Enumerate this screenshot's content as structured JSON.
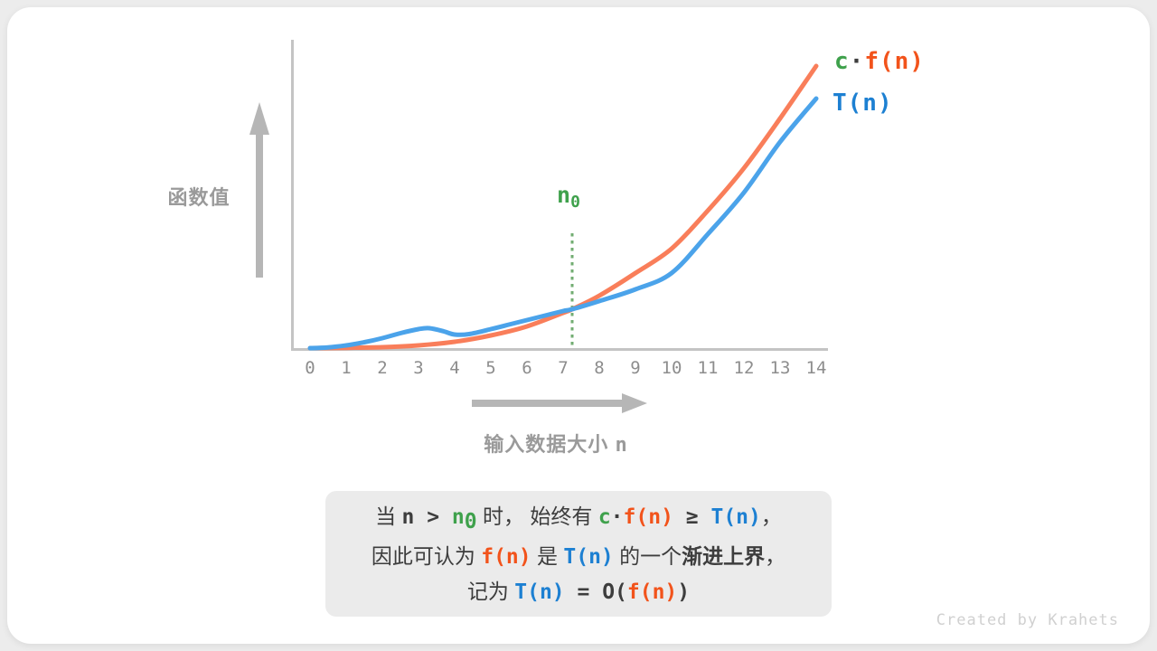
{
  "page": {
    "watermark": "Created by Krahets",
    "background_color": "#ececec",
    "card_color": "#ffffff"
  },
  "colors": {
    "green": "#3fa14c",
    "orange_text": "#f2531b",
    "blue_text": "#1d80d2",
    "orange_curve": "#f97e5a",
    "blue_curve": "#4ba3ea",
    "axis_gray": "#c4c4c4",
    "arrow_gray": "#b6b6b6",
    "tick_gray": "#8d8d8d",
    "threshold_green": "#72ad72",
    "caption_bg": "#ebebeb",
    "caption_text": "#3d3d3d"
  },
  "chart_data": {
    "type": "line",
    "title": "",
    "xlabel_cjk": "输入数据大小",
    "xlabel_var": "n",
    "ylabel": "函数值",
    "x_ticks": [
      "0",
      "1",
      "2",
      "3",
      "4",
      "5",
      "6",
      "7",
      "8",
      "9",
      "10",
      "11",
      "12",
      "13",
      "14"
    ],
    "xlim": [
      0,
      14.3
    ],
    "ylim": [
      0,
      330
    ],
    "grid": false,
    "legend_position": "top-right",
    "threshold": {
      "base": "n",
      "sub": "0",
      "x": 7.25,
      "line_style": "dotted-vertical"
    },
    "crossing_point": {
      "x": 7.25,
      "y": 43
    },
    "series": [
      {
        "name": "c·f(n)",
        "color": "#f97e5a",
        "points": [
          [
            0,
            0
          ],
          [
            1,
            0.3
          ],
          [
            2,
            1
          ],
          [
            3,
            3
          ],
          [
            4,
            7
          ],
          [
            5,
            14
          ],
          [
            6,
            24
          ],
          [
            7,
            39
          ],
          [
            7.25,
            43
          ],
          [
            8,
            58
          ],
          [
            9,
            83
          ],
          [
            10,
            110
          ],
          [
            11,
            152
          ],
          [
            12,
            199
          ],
          [
            13,
            254
          ],
          [
            14,
            312
          ]
        ]
      },
      {
        "name": "T(n)",
        "color": "#4ba3ea",
        "points": [
          [
            0,
            0
          ],
          [
            0.5,
            0.8
          ],
          [
            1,
            3
          ],
          [
            1.5,
            6.5
          ],
          [
            2,
            11
          ],
          [
            2.5,
            16.5
          ],
          [
            3,
            21
          ],
          [
            3.3,
            22
          ],
          [
            3.7,
            18.5
          ],
          [
            4,
            15
          ],
          [
            4.4,
            15.5
          ],
          [
            5,
            21
          ],
          [
            5.5,
            26
          ],
          [
            6,
            31
          ],
          [
            6.5,
            36
          ],
          [
            7,
            41
          ],
          [
            7.25,
            43
          ],
          [
            8,
            52
          ],
          [
            9,
            65
          ],
          [
            10,
            83
          ],
          [
            11,
            126
          ],
          [
            12,
            172
          ],
          [
            13,
            228
          ],
          [
            14,
            276
          ]
        ]
      }
    ]
  },
  "legend": {
    "cf_parts": [
      {
        "t": "c",
        "cls": "c-green"
      },
      {
        "t": "·",
        "cls": "c-dark"
      },
      {
        "t": "f(n)",
        "cls": "c-orange"
      }
    ],
    "tn_parts": [
      {
        "t": "T(n)",
        "cls": "c-blue"
      }
    ]
  },
  "caption": {
    "lines": [
      [
        {
          "t": "当 ",
          "cls": "cjk"
        },
        {
          "t": "n",
          "cls": "mono c-dark"
        },
        {
          "t": " > ",
          "cls": "mono c-dark"
        },
        {
          "t": "n",
          "cls": "mono c-green"
        },
        {
          "t": "0",
          "cls": "mono c-green",
          "sub": true
        },
        {
          "t": " 时，",
          "cls": "cjk"
        },
        {
          "t": " 始终有 ",
          "cls": "cjk"
        },
        {
          "t": "c",
          "cls": "mono c-green"
        },
        {
          "t": "·",
          "cls": "mono c-dark"
        },
        {
          "t": "f(n)",
          "cls": "mono c-orange"
        },
        {
          "t": " ≥ ",
          "cls": "mono c-dark"
        },
        {
          "t": "T(n)",
          "cls": "mono c-blue"
        },
        {
          "t": "，",
          "cls": "cjk"
        }
      ],
      [
        {
          "t": "因此可认为 ",
          "cls": "cjk"
        },
        {
          "t": "f(n)",
          "cls": "mono c-orange"
        },
        {
          "t": " 是 ",
          "cls": "cjk"
        },
        {
          "t": "T(n)",
          "cls": "mono c-blue"
        },
        {
          "t": " 的一个",
          "cls": "cjk"
        },
        {
          "t": "渐进上界",
          "cls": "cjk bold"
        },
        {
          "t": "，",
          "cls": "cjk"
        }
      ],
      [
        {
          "t": "记为 ",
          "cls": "cjk"
        },
        {
          "t": "T(n)",
          "cls": "mono c-blue"
        },
        {
          "t": " = ",
          "cls": "mono c-dark"
        },
        {
          "t": "O(",
          "cls": "mono c-dark"
        },
        {
          "t": "f(n)",
          "cls": "mono c-orange"
        },
        {
          "t": ")",
          "cls": "mono c-dark"
        }
      ]
    ]
  }
}
